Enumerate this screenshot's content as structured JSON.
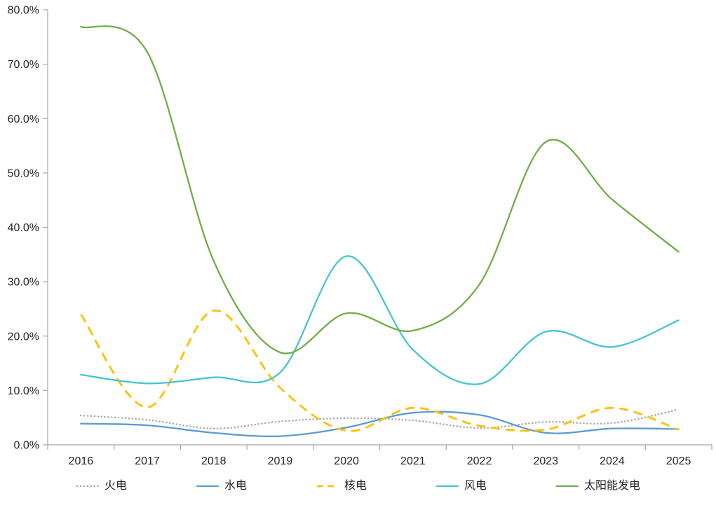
{
  "chart_data": {
    "type": "line",
    "title": "",
    "xlabel": "",
    "ylabel": "",
    "categories": [
      "2016",
      "2017",
      "2018",
      "2019",
      "2020",
      "2021",
      "2022",
      "2023",
      "2024",
      "2025"
    ],
    "series": [
      {
        "id": "thermal",
        "name": "火电",
        "color": "#A6A6A6",
        "style": "dotted",
        "values": [
          5.4,
          4.6,
          3.0,
          4.3,
          4.9,
          4.5,
          3.1,
          4.2,
          4.0,
          6.5
        ]
      },
      {
        "id": "hydro",
        "name": "水电",
        "color": "#5B9BD5",
        "style": "solid",
        "values": [
          3.9,
          3.6,
          2.2,
          1.6,
          3.2,
          5.9,
          5.5,
          2.2,
          3.0,
          2.9
        ]
      },
      {
        "id": "nuclear",
        "name": "核电",
        "color": "#FFC000",
        "style": "dashed",
        "values": [
          24.0,
          6.9,
          24.7,
          10.5,
          2.6,
          6.8,
          3.5,
          2.8,
          6.8,
          2.8
        ]
      },
      {
        "id": "wind",
        "name": "风电",
        "color": "#45C4D3",
        "style": "solid",
        "values": [
          12.9,
          11.3,
          12.4,
          13.3,
          34.7,
          17.5,
          11.2,
          20.8,
          18.0,
          22.9
        ]
      },
      {
        "id": "solar",
        "name": "太阳能发电",
        "color": "#70AD47",
        "style": "solid",
        "values": [
          76.9,
          72.2,
          33.8,
          17.0,
          24.2,
          21.0,
          29.5,
          55.7,
          45.1,
          35.5
        ]
      }
    ],
    "ylim": [
      0,
      80
    ],
    "ytick_step": 10,
    "ytick_labels": [
      "0.0%",
      "10.0%",
      "20.0%",
      "30.0%",
      "40.0%",
      "50.0%",
      "60.0%",
      "70.0%",
      "80.0%"
    ],
    "grid": false,
    "smooth_lines": true,
    "legend_position": "bottom",
    "axis_color": "#A6A6A6",
    "label_color": "#262626"
  }
}
